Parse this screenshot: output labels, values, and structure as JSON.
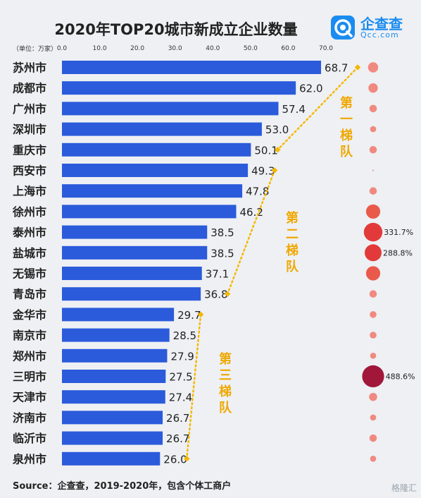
{
  "header": {
    "title": "2020年TOP20城市新成立企业数量",
    "logo_text": "企查查",
    "logo_sub": "Qcc.com",
    "unit": "（单位：万家）"
  },
  "footer": {
    "source": "Source：企查查，2019-2020年，包含个体工商户",
    "watermark": "格隆汇"
  },
  "tiers": [
    "第一梯队",
    "第二梯队",
    "第三梯队"
  ],
  "colors": {
    "bar": "#2b5bdb",
    "dash": "#f5b800",
    "tier_text": "#f0a800",
    "bubble_light": "#f08a80",
    "bubble_mid": "#e95a4a",
    "bubble_red": "#e23a3a",
    "bubble_dark": "#a0173a"
  },
  "chart_data": {
    "type": "bar",
    "orientation": "horizontal",
    "title": "2020年TOP20城市新成立企业数量",
    "unit": "万家",
    "xlim": [
      0,
      70
    ],
    "xticks": [
      "0.0",
      "10.0",
      "20.0",
      "30.0",
      "40.0",
      "50.0",
      "60.0",
      "70.0"
    ],
    "categories": [
      "苏州市",
      "成都市",
      "广州市",
      "深圳市",
      "重庆市",
      "西安市",
      "上海市",
      "徐州市",
      "泰州市",
      "盐城市",
      "无锡市",
      "青岛市",
      "金华市",
      "南京市",
      "郑州市",
      "三明市",
      "天津市",
      "济南市",
      "临沂市",
      "泉州市"
    ],
    "values": [
      68.7,
      62.0,
      57.4,
      53.0,
      50.1,
      49.3,
      47.8,
      46.2,
      38.5,
      38.5,
      37.1,
      36.8,
      29.7,
      28.5,
      27.9,
      27.5,
      27.4,
      26.7,
      26.7,
      26.0
    ],
    "value_labels": [
      "68.7",
      "62.0",
      "57.4",
      "53.0",
      "50.1",
      "49.3",
      "47.8",
      "46.2",
      "38.5",
      "38.5",
      "37.1",
      "36.8",
      "29.7",
      "28.5",
      "27.9",
      "27.5",
      "27.4",
      "26.7",
      "26.7",
      "26.0"
    ],
    "growth_bubbles": {
      "labels": [
        "",
        "",
        "",
        "",
        "",
        "",
        "",
        "",
        "331.7%",
        "288.8%",
        "",
        "",
        "",
        "",
        "",
        "488.6%",
        "",
        "",
        "",
        ""
      ],
      "relative_size": [
        0.3,
        0.28,
        0.22,
        0.18,
        0.22,
        0.02,
        0.22,
        0.42,
        0.55,
        0.5,
        0.42,
        0.22,
        0.2,
        0.2,
        0.18,
        0.65,
        0.24,
        0.18,
        0.22,
        0.18
      ]
    },
    "tier_groups": [
      {
        "name": "第一梯队",
        "from": 0,
        "to": 4
      },
      {
        "name": "第二梯队",
        "from": 5,
        "to": 11
      },
      {
        "name": "第三梯队",
        "from": 12,
        "to": 19
      }
    ]
  }
}
